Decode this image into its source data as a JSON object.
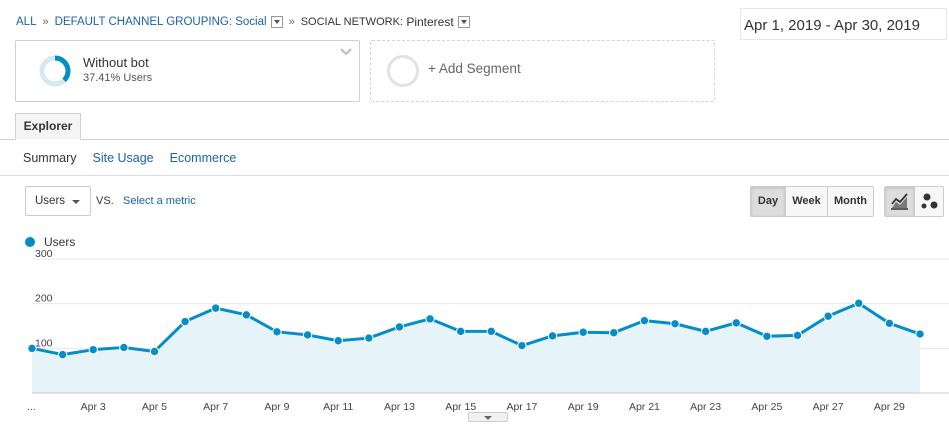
{
  "breadcrumb": {
    "all": "ALL",
    "sep": "»",
    "grouping_label": "DEFAULT CHANNEL GROUPING:",
    "grouping_value": "Social",
    "network_label": "SOCIAL NETWORK:",
    "network_value": "Pinterest"
  },
  "date_range": "Apr 1, 2019 - Apr 30, 2019",
  "segment": {
    "title": "Without bot",
    "subtitle": "37.41% Users",
    "percent": 37.41,
    "color": "#058dc7"
  },
  "add_segment": "+ Add Segment",
  "tabs": {
    "explorer": "Explorer",
    "sub": [
      "Summary",
      "Site Usage",
      "Ecommerce"
    ]
  },
  "metric": {
    "selected": "Users",
    "vs": "VS.",
    "select_metric": "Select a metric"
  },
  "period_buttons": [
    "Day",
    "Week",
    "Month"
  ],
  "period_selected": "Day",
  "chart_type_icons": [
    "line-chart-icon",
    "motion-chart-icon"
  ],
  "legend": {
    "label": "Users",
    "color": "#058dc7"
  },
  "chart_data": {
    "type": "line",
    "series": [
      {
        "name": "Users",
        "values": [
          100,
          86,
          97,
          102,
          93,
          160,
          190,
          175,
          137,
          130,
          117,
          123,
          148,
          166,
          138,
          138,
          106,
          128,
          136,
          135,
          162,
          155,
          138,
          157,
          127,
          129,
          172,
          201,
          156,
          132
        ]
      }
    ],
    "x": [
      "Apr 1",
      "Apr 2",
      "Apr 3",
      "Apr 4",
      "Apr 5",
      "Apr 6",
      "Apr 7",
      "Apr 8",
      "Apr 9",
      "Apr 10",
      "Apr 11",
      "Apr 12",
      "Apr 13",
      "Apr 14",
      "Apr 15",
      "Apr 16",
      "Apr 17",
      "Apr 18",
      "Apr 19",
      "Apr 20",
      "Apr 21",
      "Apr 22",
      "Apr 23",
      "Apr 24",
      "Apr 25",
      "Apr 26",
      "Apr 27",
      "Apr 28",
      "Apr 29",
      "Apr 30"
    ],
    "x_tick_labels": [
      "...",
      "Apr 3",
      "Apr 5",
      "Apr 7",
      "Apr 9",
      "Apr 11",
      "Apr 13",
      "Apr 15",
      "Apr 17",
      "Apr 19",
      "Apr 21",
      "Apr 23",
      "Apr 25",
      "Apr 27",
      "Apr 29"
    ],
    "y_ticks": [
      100,
      200,
      300
    ],
    "ylim": [
      0,
      300
    ],
    "line_color": "#058dc7",
    "fill_color": "#e6f4fa",
    "grid": true
  }
}
